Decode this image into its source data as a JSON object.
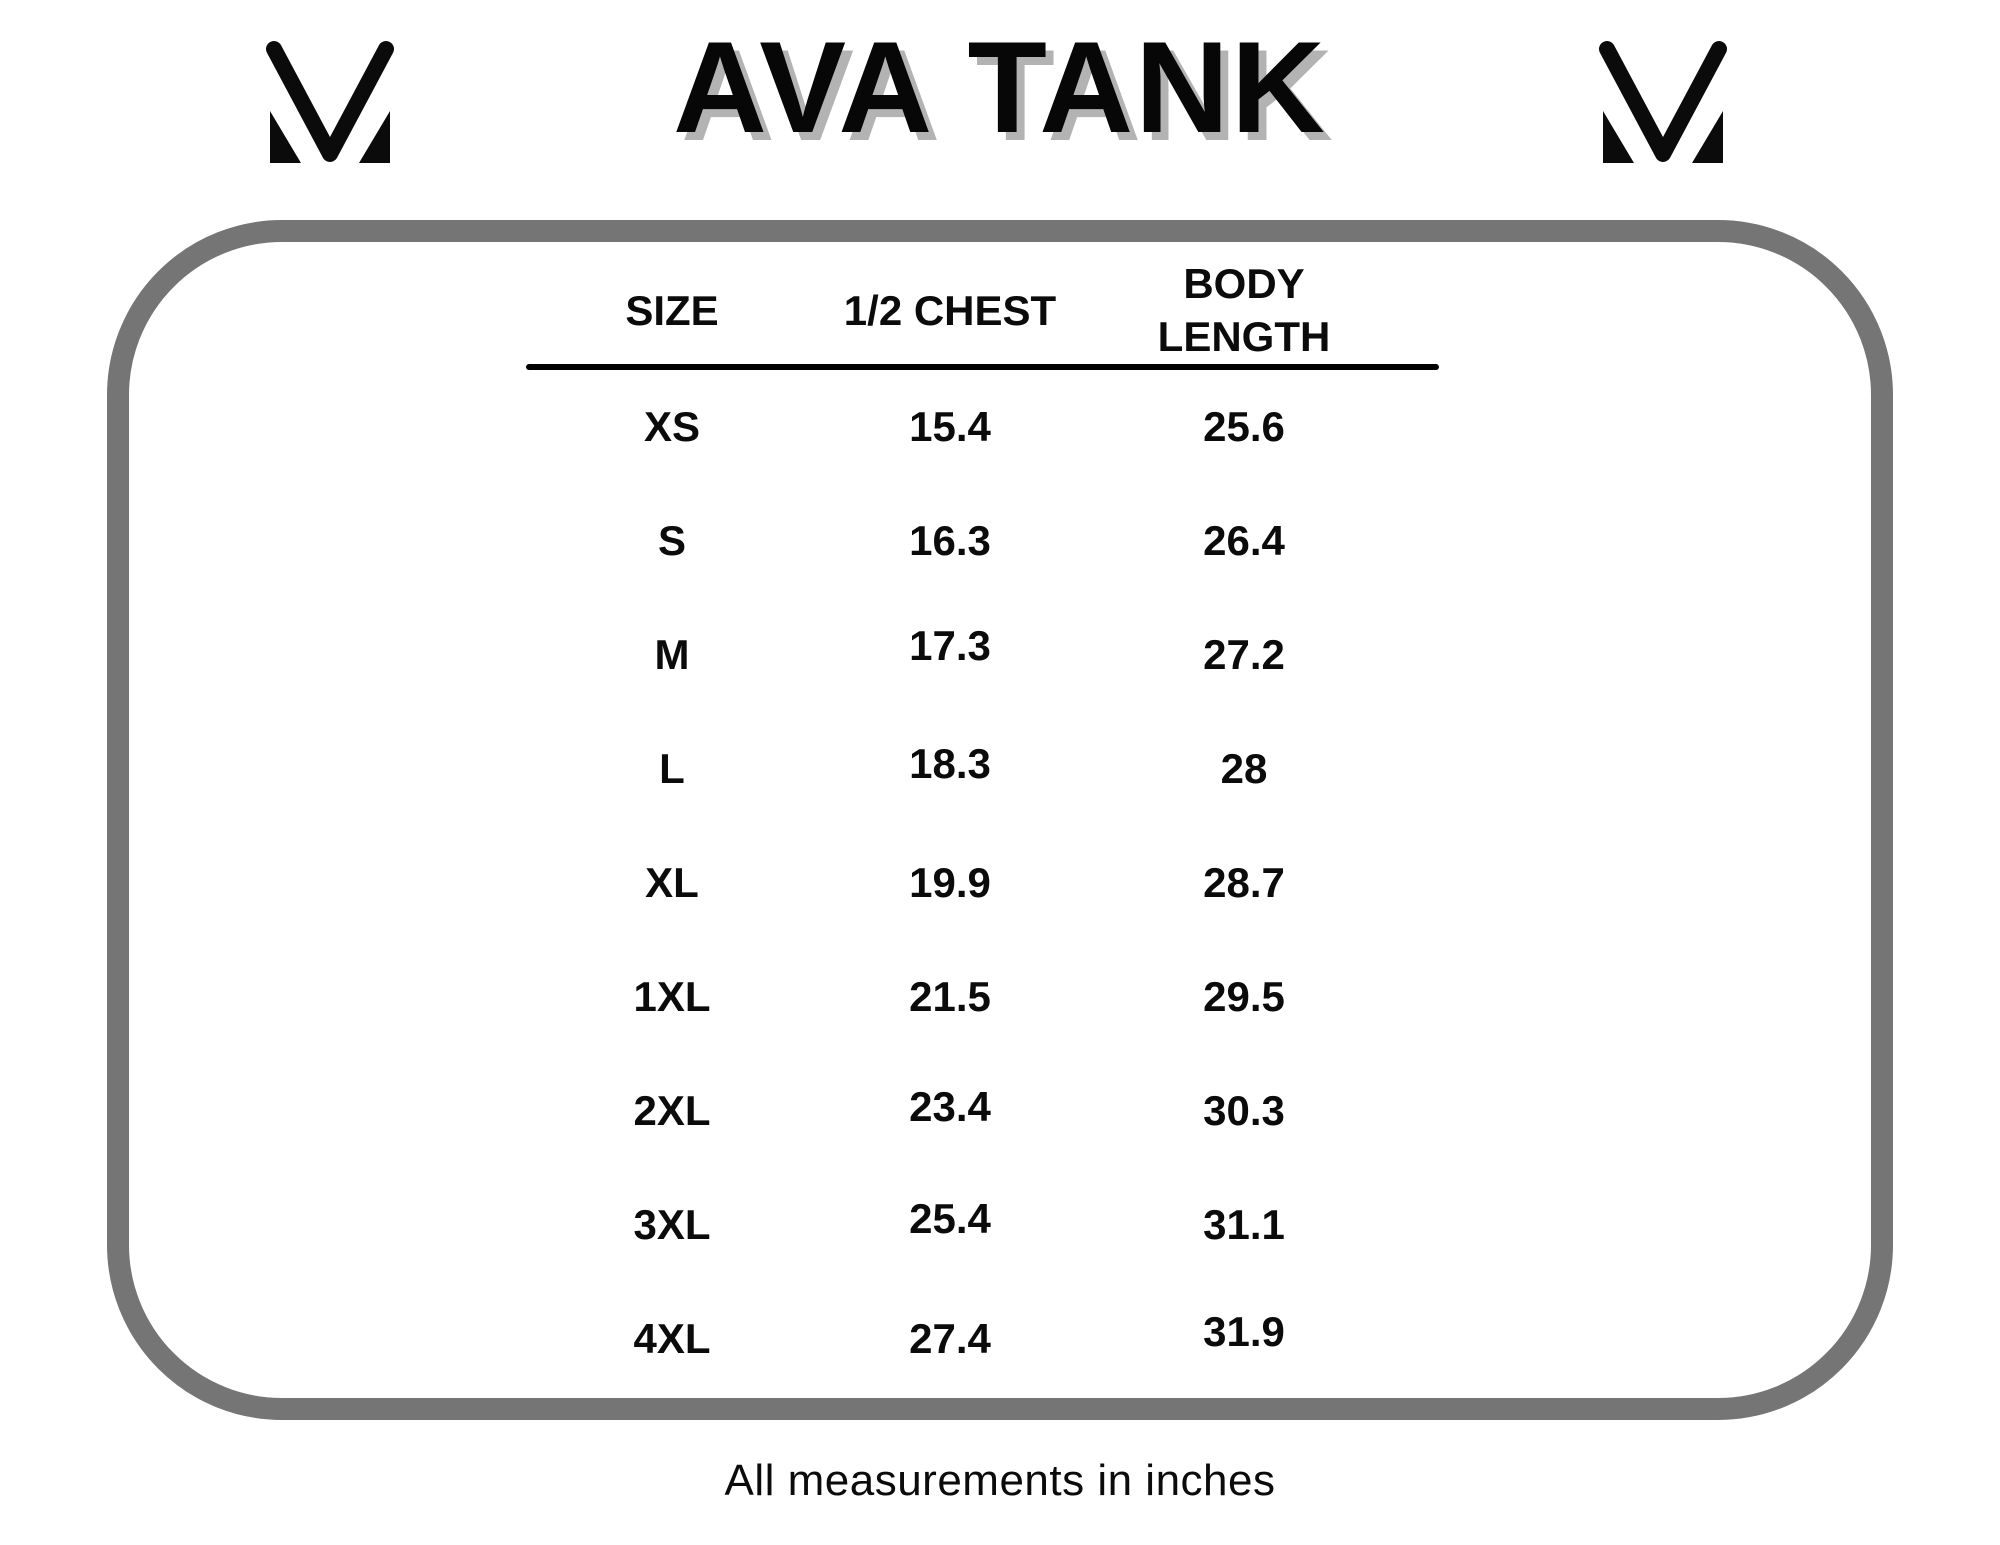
{
  "title": "AVA TANK",
  "footer": "All measurements in inches",
  "logos": {
    "left": "m-brand-mark",
    "right": "m-brand-mark"
  },
  "colors": {
    "background": "#ffffff",
    "frame_gray": "#757575",
    "text_black": "#0b0b0b",
    "title_shadow_gray": "#b3b3b3"
  },
  "chart_data": {
    "type": "table",
    "title": "AVA TANK",
    "columns": [
      "SIZE",
      "1/2 CHEST",
      "BODY LENGTH"
    ],
    "rows": [
      [
        "XS",
        "15.4",
        "25.6"
      ],
      [
        "S",
        "16.3",
        "26.4"
      ],
      [
        "M",
        "17.3",
        "27.2"
      ],
      [
        "L",
        "18.3",
        "28"
      ],
      [
        "XL",
        "19.9",
        "28.7"
      ],
      [
        "1XL",
        "21.5",
        "29.5"
      ],
      [
        "2XL",
        "23.4",
        "30.3"
      ],
      [
        "3XL",
        "25.4",
        "31.1"
      ],
      [
        "4XL",
        "27.4",
        "31.9"
      ]
    ],
    "note": "All measurements in inches",
    "units": "inches",
    "layout": {
      "grid": false,
      "header_underline": true
    }
  }
}
